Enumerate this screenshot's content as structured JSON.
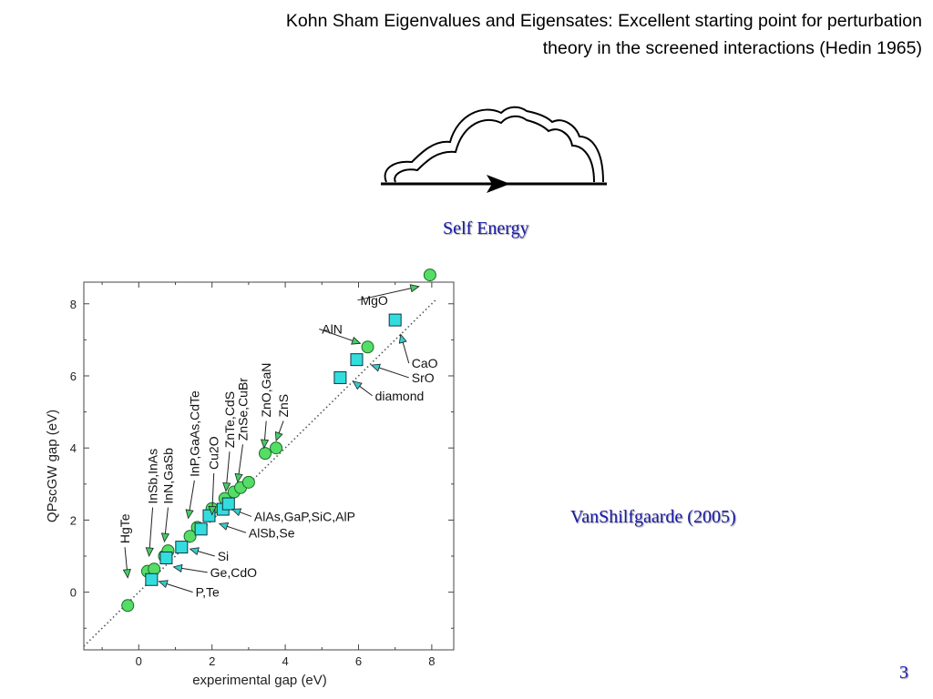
{
  "slide": {
    "title_line1": "Kohn Sham Eigenvalues and Eigensates: Excellent starting point  for  perturbation",
    "title_line2": "theory in the screened interactions (Hedin 1965)",
    "diagram_label": "Self Energy",
    "credit": "VanShilfgaarde (2005)",
    "slide_number": "3"
  },
  "chart_data": {
    "type": "scatter",
    "title": "",
    "xlabel": "experimental gap (eV)",
    "ylabel": "QPscGW gap (eV)",
    "xlim": [
      -1.5,
      8.6
    ],
    "ylim": [
      -1.6,
      8.6
    ],
    "xticks": [
      0,
      2,
      4,
      6,
      8
    ],
    "yticks": [
      0,
      2,
      4,
      6,
      8
    ],
    "grid": false,
    "reference_line": "y = x (dotted)",
    "colors": {
      "circle": "#55dd66",
      "square": "#33dddd",
      "arrow": "#44cc66",
      "arrow_cyan": "#33cccc"
    },
    "series": [
      {
        "marker": "circle",
        "points": [
          {
            "x": -0.3,
            "y": -0.37
          },
          {
            "x": 0.24,
            "y": 0.58
          },
          {
            "x": 0.42,
            "y": 0.64
          },
          {
            "x": 0.7,
            "y": 1.0
          },
          {
            "x": 0.8,
            "y": 1.15
          },
          {
            "x": 1.4,
            "y": 1.55
          },
          {
            "x": 1.6,
            "y": 1.8
          },
          {
            "x": 2.0,
            "y": 2.32
          },
          {
            "x": 2.35,
            "y": 2.6
          },
          {
            "x": 2.6,
            "y": 2.78
          },
          {
            "x": 2.78,
            "y": 2.9
          },
          {
            "x": 3.0,
            "y": 3.05
          },
          {
            "x": 3.45,
            "y": 3.85
          },
          {
            "x": 3.75,
            "y": 4.0
          },
          {
            "x": 6.25,
            "y": 6.8
          },
          {
            "x": 7.95,
            "y": 8.8
          }
        ]
      },
      {
        "marker": "square",
        "points": [
          {
            "x": 0.35,
            "y": 0.35
          },
          {
            "x": 0.75,
            "y": 0.95
          },
          {
            "x": 1.17,
            "y": 1.25
          },
          {
            "x": 1.7,
            "y": 1.75
          },
          {
            "x": 1.92,
            "y": 2.12
          },
          {
            "x": 2.3,
            "y": 2.3
          },
          {
            "x": 2.45,
            "y": 2.45
          },
          {
            "x": 5.5,
            "y": 5.95
          },
          {
            "x": 5.95,
            "y": 6.45
          },
          {
            "x": 7.0,
            "y": 7.55
          }
        ]
      }
    ],
    "annotations": [
      {
        "text": "HgTe",
        "tx": -0.38,
        "ty": 1.35,
        "x": -0.3,
        "y": 0.4,
        "rot": -90,
        "color": "#44cc66"
      },
      {
        "text": "InSb,InAs",
        "tx": 0.38,
        "ty": 2.45,
        "x": 0.28,
        "y": 1.0,
        "rot": -90,
        "color": "#44cc66"
      },
      {
        "text": "InN,GaSb",
        "tx": 0.8,
        "ty": 2.45,
        "x": 0.7,
        "y": 1.4,
        "rot": -90,
        "color": "#44cc66"
      },
      {
        "text": "InP,GaAs,CdTe",
        "tx": 1.52,
        "ty": 3.2,
        "x": 1.35,
        "y": 2.05,
        "rot": -90,
        "color": "#44cc66"
      },
      {
        "text": "Cu2O",
        "tx": 2.05,
        "ty": 3.4,
        "x": 2.0,
        "y": 2.15,
        "rot": -90,
        "color": "#44cc66"
      },
      {
        "text": "ZnTe,CdS",
        "tx": 2.48,
        "ty": 4.0,
        "x": 2.38,
        "y": 2.8,
        "rot": -90,
        "color": "#44cc66"
      },
      {
        "text": "ZnSe,CuBr",
        "tx": 2.84,
        "ty": 4.2,
        "x": 2.7,
        "y": 3.05,
        "rot": -90,
        "color": "#44cc66"
      },
      {
        "text": "ZnO,GaN",
        "tx": 3.48,
        "ty": 4.85,
        "x": 3.42,
        "y": 4.0,
        "rot": -90,
        "color": "#44cc66"
      },
      {
        "text": "ZnS",
        "tx": 3.95,
        "ty": 4.85,
        "x": 3.75,
        "y": 4.2,
        "rot": -90,
        "color": "#44cc66"
      },
      {
        "text": "MgO",
        "tx": 6.05,
        "ty": 8.1,
        "x": 7.65,
        "y": 8.48,
        "rot": 0,
        "color": "#44cc66"
      },
      {
        "text": "AlN",
        "tx": 5.0,
        "ty": 7.3,
        "x": 6.05,
        "y": 6.9,
        "rot": 0,
        "color": "#44cc66"
      },
      {
        "text": "CaO",
        "tx": 7.45,
        "ty": 6.35,
        "x": 7.15,
        "y": 7.15,
        "rot": 0,
        "color": "#33cccc"
      },
      {
        "text": "SrO",
        "tx": 7.45,
        "ty": 5.95,
        "x": 6.35,
        "y": 6.3,
        "rot": 0,
        "color": "#33cccc"
      },
      {
        "text": "diamond",
        "tx": 6.45,
        "ty": 5.45,
        "x": 5.85,
        "y": 5.85,
        "rot": 0,
        "color": "#33cccc"
      },
      {
        "text": "AlAs,GaP,SiC,AlP",
        "tx": 3.15,
        "ty": 2.1,
        "x": 2.55,
        "y": 2.3,
        "rot": 0,
        "color": "#33cccc"
      },
      {
        "text": "AlSb,Se",
        "tx": 3.0,
        "ty": 1.65,
        "x": 2.2,
        "y": 1.9,
        "rot": 0,
        "color": "#33cccc"
      },
      {
        "text": "Si",
        "tx": 2.15,
        "ty": 1.0,
        "x": 1.4,
        "y": 1.2,
        "rot": 0,
        "color": "#33cccc"
      },
      {
        "text": "Ge,CdO",
        "tx": 1.95,
        "ty": 0.55,
        "x": 0.95,
        "y": 0.7,
        "rot": 0,
        "color": "#33cccc"
      },
      {
        "text": "P,Te",
        "tx": 1.55,
        "ty": 0.0,
        "x": 0.55,
        "y": 0.3,
        "rot": 0,
        "color": "#33cccc"
      }
    ]
  }
}
